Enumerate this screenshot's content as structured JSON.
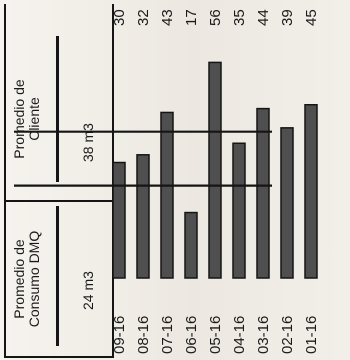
{
  "colors": {
    "bar": "#4f4f4f",
    "bar_outline": "#151515",
    "reference_line": "#151515",
    "paper": "#f3f0ea"
  },
  "summary": {
    "dmq": {
      "label_line1": "Promedio de",
      "label_line2": "Consumo DMQ",
      "value": "24 m3"
    },
    "cliente": {
      "label_line1": "Promedio de",
      "label_line2": "Cliente",
      "value": "38 m3"
    }
  },
  "chart_data": {
    "type": "bar",
    "orientation": "vertical",
    "categories": [
      "01-16",
      "02-16",
      "03-16",
      "04-16",
      "05-16",
      "06-16",
      "07-16",
      "08-16",
      "09-16"
    ],
    "values": [
      45,
      39,
      44,
      35,
      56,
      17,
      43,
      32,
      30
    ],
    "data_labels": [
      "45",
      "39",
      "44",
      "35",
      "56",
      "17",
      "43",
      "32",
      "30"
    ],
    "reference_lines": [
      {
        "label": "Promedio de Consumo DMQ",
        "value": 24
      },
      {
        "label": "Promedio de Cliente",
        "value": 38
      }
    ],
    "title": "",
    "xlabel": "",
    "ylabel": "",
    "ylim": [
      0,
      65
    ],
    "grid": false,
    "legend": "none"
  }
}
